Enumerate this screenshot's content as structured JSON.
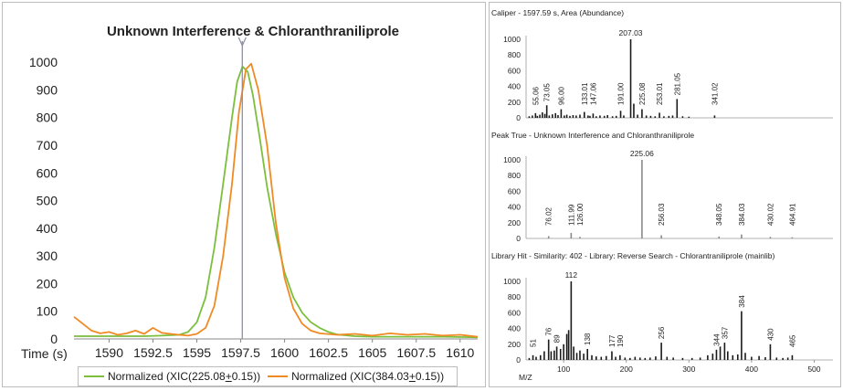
{
  "chart_data": [
    {
      "type": "line",
      "title": "Unknown Interference & Chloranthraniliprole",
      "xlabel": "Time (s)",
      "ylabel": "",
      "xlim": [
        1588,
        1611
      ],
      "ylim": [
        0,
        1050
      ],
      "x_ticks": [
        1590,
        1592.5,
        1595,
        1597.5,
        1600,
        1602.5,
        1605,
        1607.5,
        1610
      ],
      "x_tick_labels": [
        "1590",
        "1592.5",
        "1595",
        "1597.5",
        "1600",
        "1602.5",
        "1605",
        "1607.5",
        "1610"
      ],
      "y_ticks": [
        0,
        100,
        200,
        300,
        400,
        500,
        600,
        700,
        800,
        900,
        1000
      ],
      "y_tick_labels": [
        "0",
        "100",
        "200",
        "300",
        "400",
        "500",
        "600",
        "700",
        "800",
        "900",
        "1000"
      ],
      "marker_x": 1597.59,
      "series": [
        {
          "name": "Normalized (XIC(225.08±0.15))",
          "legend_prefix": "Normalized (XIC(225.08",
          "legend_pm": "+",
          "legend_suffix": "0.15))",
          "color": "#7bbf3c",
          "x": [
            1588,
            1590,
            1591,
            1592,
            1593,
            1594,
            1594.5,
            1595,
            1595.5,
            1596,
            1596.5,
            1597,
            1597.3,
            1597.6,
            1597.9,
            1598.2,
            1598.6,
            1599,
            1599.5,
            1600,
            1600.5,
            1601,
            1601.5,
            1602,
            1602.5,
            1603,
            1604,
            1605,
            1607,
            1609,
            1611
          ],
          "y": [
            10,
            10,
            10,
            10,
            12,
            15,
            25,
            60,
            150,
            330,
            560,
            800,
            930,
            985,
            965,
            880,
            720,
            550,
            380,
            240,
            150,
            95,
            60,
            40,
            25,
            16,
            10,
            8,
            8,
            8,
            6
          ]
        },
        {
          "name": "Normalized (XIC(384.03±0.15))",
          "legend_prefix": "Normalized (XIC(384.03",
          "legend_pm": "+",
          "legend_suffix": "0.15))",
          "color": "#f08a24",
          "x": [
            1588,
            1588.5,
            1589,
            1589.5,
            1590,
            1590.5,
            1591,
            1591.5,
            1592,
            1592.5,
            1593,
            1593.5,
            1594,
            1594.5,
            1595,
            1595.5,
            1596,
            1596.5,
            1597,
            1597.4,
            1597.8,
            1598.1,
            1598.5,
            1599,
            1599.5,
            1600,
            1600.5,
            1601,
            1601.5,
            1602,
            1603,
            1604,
            1605,
            1606,
            1607,
            1608,
            1609,
            1610,
            1611
          ],
          "y": [
            80,
            55,
            30,
            20,
            25,
            15,
            20,
            30,
            18,
            40,
            22,
            18,
            15,
            12,
            18,
            40,
            120,
            300,
            560,
            820,
            975,
            995,
            900,
            700,
            420,
            220,
            110,
            55,
            30,
            20,
            15,
            18,
            12,
            20,
            15,
            18,
            12,
            15,
            8
          ]
        }
      ]
    },
    {
      "type": "bar",
      "title": "Caliper - 1597.59 s, Area (Abundance)",
      "xlim": [
        40,
        530
      ],
      "ylim": [
        0,
        1000
      ],
      "y_ticks": [
        0,
        200,
        400,
        600,
        800,
        1000
      ],
      "y_tick_labels": [
        "0",
        "200",
        "400",
        "600",
        "800",
        "1000"
      ],
      "color": "#1a1a1a",
      "x": [
        45,
        50,
        55.06,
        58,
        62,
        66,
        70,
        73.05,
        77,
        82,
        87,
        91,
        96.0,
        101,
        105,
        110,
        115,
        120,
        126,
        133.01,
        139,
        142,
        147.06,
        152,
        158,
        165,
        170,
        178,
        184,
        191.0,
        196,
        207.03,
        212,
        218,
        225.08,
        232,
        239,
        246,
        253.01,
        260,
        268,
        274,
        281.05,
        290,
        300,
        341.02
      ],
      "y": [
        20,
        30,
        60,
        25,
        40,
        70,
        50,
        160,
        30,
        45,
        60,
        35,
        110,
        30,
        40,
        25,
        35,
        30,
        40,
        75,
        30,
        25,
        55,
        20,
        30,
        25,
        35,
        20,
        25,
        90,
        30,
        1000,
        180,
        40,
        110,
        30,
        25,
        20,
        65,
        20,
        25,
        30,
        240,
        20,
        15,
        30
      ],
      "labels": [
        {
          "x": 55.06,
          "text": "55.06"
        },
        {
          "x": 73.05,
          "text": "73.05"
        },
        {
          "x": 96.0,
          "text": "96.00"
        },
        {
          "x": 133.01,
          "text": "133.01"
        },
        {
          "x": 147.06,
          "text": "147.06"
        },
        {
          "x": 191.0,
          "text": "191.00"
        },
        {
          "x": 207.03,
          "text": "207.03",
          "horizontal": true
        },
        {
          "x": 225.08,
          "text": "225.08"
        },
        {
          "x": 253.01,
          "text": "253.01"
        },
        {
          "x": 281.05,
          "text": "281.05"
        },
        {
          "x": 341.02,
          "text": "341.02"
        }
      ]
    },
    {
      "type": "bar",
      "title": "Peak True - Unknown Interference and Chloranthraniliprole",
      "xlim": [
        40,
        530
      ],
      "ylim": [
        0,
        1000
      ],
      "y_ticks": [
        0,
        200,
        400,
        600,
        800,
        1000
      ],
      "y_tick_labels": [
        "0",
        "200",
        "400",
        "600",
        "800",
        "1000"
      ],
      "color": "#8a8a8a",
      "x": [
        76.02,
        111.99,
        126.0,
        225.06,
        256.03,
        348.05,
        384.03,
        430.02,
        464.91
      ],
      "y": [
        30,
        70,
        20,
        1000,
        40,
        25,
        50,
        20,
        15
      ],
      "labels": [
        {
          "x": 76.02,
          "text": "76.02"
        },
        {
          "x": 111.99,
          "text": "111.99"
        },
        {
          "x": 126.0,
          "text": "126.00"
        },
        {
          "x": 225.06,
          "text": "225.06",
          "horizontal": true
        },
        {
          "x": 256.03,
          "text": "256.03"
        },
        {
          "x": 348.05,
          "text": "348.05"
        },
        {
          "x": 384.03,
          "text": "384.03"
        },
        {
          "x": 430.02,
          "text": "430.02"
        },
        {
          "x": 464.91,
          "text": "464.91"
        }
      ]
    },
    {
      "type": "bar",
      "title": "Library Hit - Similarity: 402 - Library: Reverse Search - Chlorantraniliprole (mainlib)",
      "xlabel": "M/Z",
      "xlim": [
        40,
        530
      ],
      "ylim": [
        0,
        1000
      ],
      "x_ticks": [
        100,
        200,
        300,
        400,
        500
      ],
      "x_tick_labels": [
        "100",
        "200",
        "300",
        "400",
        "500"
      ],
      "y_ticks": [
        0,
        200,
        400,
        600,
        800,
        1000
      ],
      "y_tick_labels": [
        "0",
        "200",
        "400",
        "600",
        "800",
        "1000"
      ],
      "color": "#1a1a1a",
      "x": [
        45,
        51,
        56,
        63,
        69,
        76,
        80,
        85,
        89,
        95,
        100,
        105,
        108,
        112,
        116,
        121,
        126,
        132,
        138,
        145,
        152,
        160,
        168,
        177,
        183,
        190,
        198,
        206,
        214,
        222,
        230,
        238,
        247,
        256,
        265,
        275,
        290,
        305,
        318,
        330,
        338,
        344,
        350,
        357,
        362,
        370,
        378,
        384,
        390,
        400,
        412,
        422,
        430,
        440,
        450,
        458,
        465
      ],
      "y": [
        25,
        60,
        40,
        60,
        110,
        260,
        110,
        120,
        170,
        140,
        200,
        330,
        380,
        1000,
        170,
        90,
        120,
        80,
        140,
        60,
        45,
        40,
        50,
        110,
        40,
        60,
        30,
        25,
        40,
        30,
        25,
        30,
        45,
        220,
        40,
        30,
        25,
        25,
        30,
        60,
        80,
        130,
        170,
        220,
        110,
        60,
        70,
        620,
        90,
        40,
        50,
        35,
        200,
        30,
        25,
        30,
        60
      ],
      "labels": [
        {
          "x": 51,
          "text": "51"
        },
        {
          "x": 76,
          "text": "76"
        },
        {
          "x": 89,
          "text": "89"
        },
        {
          "x": 112,
          "text": "112",
          "horizontal": true
        },
        {
          "x": 138,
          "text": "138"
        },
        {
          "x": 177,
          "text": "177"
        },
        {
          "x": 190,
          "text": "190"
        },
        {
          "x": 256,
          "text": "256"
        },
        {
          "x": 344,
          "text": "344"
        },
        {
          "x": 357,
          "text": "357"
        },
        {
          "x": 384,
          "text": "384"
        },
        {
          "x": 430,
          "text": "430"
        },
        {
          "x": 465,
          "text": "465"
        }
      ]
    }
  ]
}
